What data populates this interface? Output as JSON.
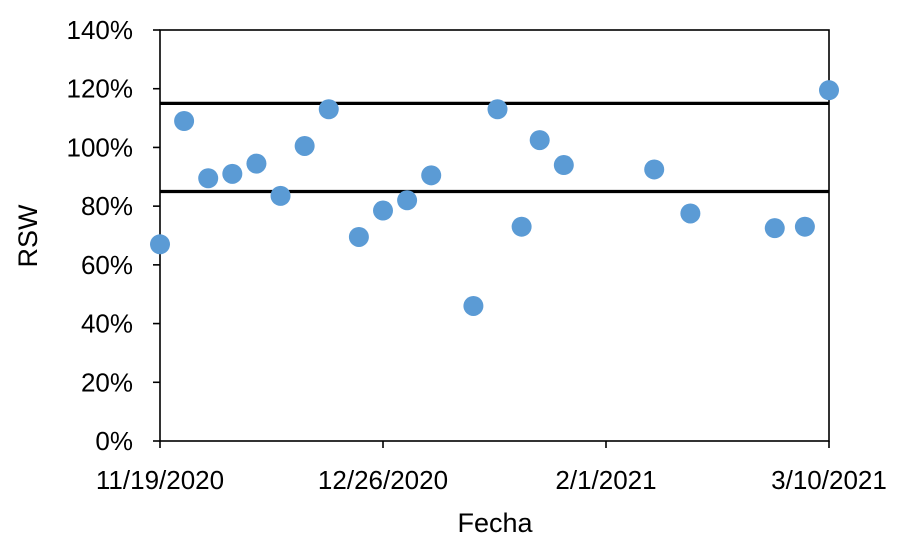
{
  "chart_data": {
    "type": "scatter",
    "title": "",
    "xlabel": "Fecha",
    "ylabel": "RSW",
    "x_axis": {
      "type": "date",
      "min": "2020-11-19",
      "max": "2021-03-10",
      "ticks": [
        "2020-11-19",
        "2020-12-26",
        "2021-02-01",
        "2021-03-10"
      ],
      "tick_labels": [
        "11/19/2020",
        "12/26/2020",
        "2/1/2021",
        "3/10/2021"
      ]
    },
    "y_axis": {
      "min": 0,
      "max": 1.4,
      "ticks": [
        0,
        0.2,
        0.4,
        0.6,
        0.8,
        1.0,
        1.2,
        1.4
      ],
      "tick_labels": [
        "0%",
        "20%",
        "40%",
        "60%",
        "80%",
        "100%",
        "120%",
        "140%"
      ]
    },
    "grid": false,
    "legend": "none",
    "series": [
      {
        "color": "#5b9bd5",
        "points": [
          {
            "x": "2020-11-19",
            "y": 0.67
          },
          {
            "x": "2020-11-23",
            "y": 1.09
          },
          {
            "x": "2020-11-27",
            "y": 0.895
          },
          {
            "x": "2020-12-01",
            "y": 0.91
          },
          {
            "x": "2020-12-05",
            "y": 0.945
          },
          {
            "x": "2020-12-09",
            "y": 0.835
          },
          {
            "x": "2020-12-13",
            "y": 1.005
          },
          {
            "x": "2020-12-17",
            "y": 1.13
          },
          {
            "x": "2020-12-22",
            "y": 0.695
          },
          {
            "x": "2020-12-26",
            "y": 0.785
          },
          {
            "x": "2020-12-30",
            "y": 0.82
          },
          {
            "x": "2021-01-03",
            "y": 0.905
          },
          {
            "x": "2021-01-10",
            "y": 0.46
          },
          {
            "x": "2021-01-14",
            "y": 1.13
          },
          {
            "x": "2021-01-18",
            "y": 0.73
          },
          {
            "x": "2021-01-21",
            "y": 1.025
          },
          {
            "x": "2021-01-25",
            "y": 0.94
          },
          {
            "x": "2021-02-09",
            "y": 0.925
          },
          {
            "x": "2021-02-15",
            "y": 0.775
          },
          {
            "x": "2021-03-01",
            "y": 0.725
          },
          {
            "x": "2021-03-06",
            "y": 0.73
          },
          {
            "x": "2021-03-10",
            "y": 1.195
          }
        ]
      }
    ],
    "reference_lines": [
      {
        "orientation": "horizontal",
        "y": 1.15,
        "color": "#000000"
      },
      {
        "orientation": "horizontal",
        "y": 0.85,
        "color": "#000000"
      }
    ]
  }
}
